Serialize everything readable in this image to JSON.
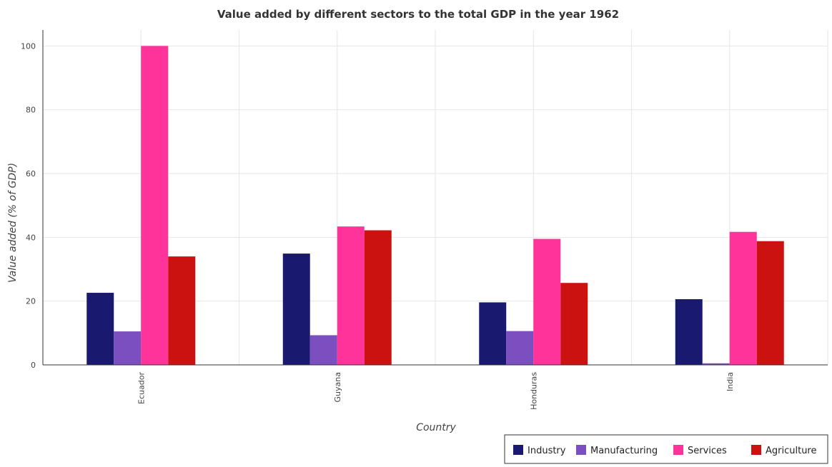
{
  "chart_data": {
    "type": "bar",
    "title": "Value added by different sectors to the total GDP in the year 1962",
    "xlabel": "Country",
    "ylabel": "Value added (% of GDP)",
    "categories": [
      "Ecuador",
      "Guyana",
      "Honduras",
      "India"
    ],
    "ylim": [
      0,
      105
    ],
    "yticks": [
      0,
      20,
      40,
      60,
      80,
      100
    ],
    "grid": true,
    "legend_position": "bottom-right",
    "series": [
      {
        "name": "Industry",
        "color": "#191970",
        "values": [
          22.6,
          34.9,
          19.6,
          20.6
        ]
      },
      {
        "name": "Manufacturing",
        "color": "#7b4fbf",
        "values": [
          10.5,
          9.3,
          10.6,
          0.5
        ]
      },
      {
        "name": "Services",
        "color": "#ff3399",
        "values": [
          100.0,
          43.4,
          39.5,
          41.7
        ]
      },
      {
        "name": "Agriculture",
        "color": "#cc1111",
        "values": [
          34.0,
          42.2,
          25.7,
          38.8
        ]
      }
    ]
  }
}
